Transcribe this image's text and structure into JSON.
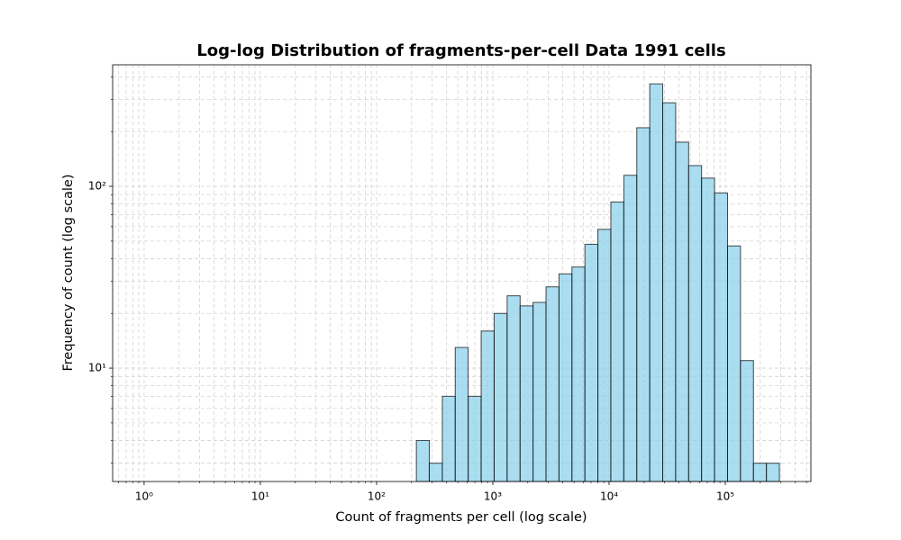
{
  "chart_data": {
    "type": "histogram",
    "title": "Log-log Distribution of fragments-per-cell Data 1991 cells",
    "x_label": "Count of fragments per cell (log scale)",
    "y_label": "Frequency of count (log scale)",
    "bins": [
      220,
      284,
      368,
      475,
      614,
      794,
      1027,
      1328,
      1717,
      2219,
      2869,
      3709,
      4795,
      6199,
      8015,
      10362,
      13397,
      17320,
      22387,
      28943,
      37418,
      48376,
      62542,
      80856,
      104540,
      135140,
      174720,
      225890,
      292000
    ],
    "values": [
      4,
      3,
      7,
      13,
      7,
      16,
      20,
      25,
      22,
      23,
      28,
      33,
      36,
      48,
      58,
      82,
      115,
      210,
      366,
      288,
      175,
      130,
      111,
      92,
      47,
      11,
      3,
      3
    ],
    "color": "#87ceeb",
    "edgecolor": "#000000",
    "alpha": 0.7,
    "xscale": "log",
    "yscale": "log",
    "xlim": [
      0.536,
      545000
    ],
    "ylim": [
      2.38,
      466
    ],
    "xticks": [
      {
        "value": 1,
        "label": "10⁰"
      },
      {
        "value": 10,
        "label": "10¹"
      },
      {
        "value": 100,
        "label": "10²"
      },
      {
        "value": 1000,
        "label": "10³"
      },
      {
        "value": 10000,
        "label": "10⁴"
      },
      {
        "value": 100000,
        "label": "10⁵"
      }
    ],
    "yticks": [
      {
        "value": 10,
        "label": "10¹"
      },
      {
        "value": 100,
        "label": "10²"
      }
    ],
    "grid": true,
    "minor_grid": true
  }
}
